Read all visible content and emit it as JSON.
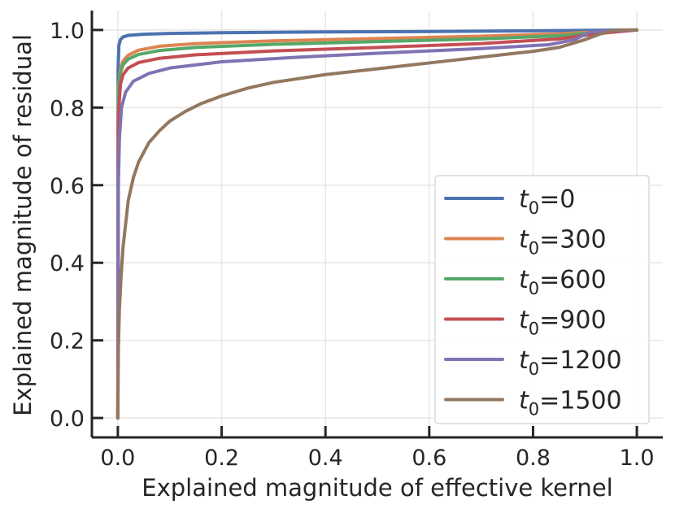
{
  "chart_data": {
    "type": "line",
    "title": "",
    "xlabel": "Explained magnitude of effective kernel",
    "ylabel": "Explained magnitude of residual",
    "xlim": [
      -0.05,
      1.05
    ],
    "ylim": [
      -0.05,
      1.05
    ],
    "xticks": [
      0.0,
      0.2,
      0.4,
      0.6,
      0.8,
      1.0
    ],
    "xtick_labels": [
      "0.0",
      "0.2",
      "0.4",
      "0.6",
      "0.8",
      "1.0"
    ],
    "yticks": [
      0.0,
      0.2,
      0.4,
      0.6,
      0.8,
      1.0
    ],
    "ytick_labels": [
      "0.0",
      "0.2",
      "0.4",
      "0.6",
      "0.8",
      "1.0"
    ],
    "grid": true,
    "legend_position": "lower right",
    "series": [
      {
        "name": "t0=0",
        "label_base": "t",
        "label_sub": "0",
        "label_value": "=0",
        "color": "#4c72b0",
        "points": [
          [
            0,
            0
          ],
          [
            0.0005,
            0.9
          ],
          [
            0.002,
            0.96
          ],
          [
            0.005,
            0.975
          ],
          [
            0.01,
            0.982
          ],
          [
            0.02,
            0.986
          ],
          [
            0.05,
            0.989
          ],
          [
            0.1,
            0.991
          ],
          [
            0.2,
            0.993
          ],
          [
            0.4,
            0.995
          ],
          [
            0.6,
            0.996
          ],
          [
            0.8,
            0.998
          ],
          [
            0.9,
            0.999
          ],
          [
            1.0,
            1.0
          ]
        ]
      },
      {
        "name": "t0=300",
        "label_base": "t",
        "label_sub": "0",
        "label_value": "=300",
        "color": "#dd8452",
        "points": [
          [
            0,
            0
          ],
          [
            0.001,
            0.85
          ],
          [
            0.005,
            0.9
          ],
          [
            0.01,
            0.92
          ],
          [
            0.02,
            0.935
          ],
          [
            0.04,
            0.948
          ],
          [
            0.08,
            0.958
          ],
          [
            0.15,
            0.965
          ],
          [
            0.3,
            0.972
          ],
          [
            0.5,
            0.978
          ],
          [
            0.7,
            0.984
          ],
          [
            0.85,
            0.99
          ],
          [
            0.93,
            0.996
          ],
          [
            1.0,
            1.0
          ]
        ]
      },
      {
        "name": "t0=600",
        "label_base": "t",
        "label_sub": "0",
        "label_value": "=600",
        "color": "#55a868",
        "points": [
          [
            0,
            0
          ],
          [
            0.001,
            0.84
          ],
          [
            0.005,
            0.89
          ],
          [
            0.01,
            0.91
          ],
          [
            0.02,
            0.925
          ],
          [
            0.04,
            0.937
          ],
          [
            0.08,
            0.947
          ],
          [
            0.15,
            0.955
          ],
          [
            0.3,
            0.963
          ],
          [
            0.5,
            0.97
          ],
          [
            0.7,
            0.977
          ],
          [
            0.85,
            0.985
          ],
          [
            0.93,
            0.994
          ],
          [
            1.0,
            1.0
          ]
        ]
      },
      {
        "name": "t0=900",
        "label_base": "t",
        "label_sub": "0",
        "label_value": "=900",
        "color": "#c44e52",
        "points": [
          [
            0,
            0
          ],
          [
            0.001,
            0.78
          ],
          [
            0.005,
            0.86
          ],
          [
            0.01,
            0.885
          ],
          [
            0.02,
            0.902
          ],
          [
            0.04,
            0.916
          ],
          [
            0.08,
            0.927
          ],
          [
            0.15,
            0.936
          ],
          [
            0.3,
            0.946
          ],
          [
            0.5,
            0.955
          ],
          [
            0.7,
            0.965
          ],
          [
            0.85,
            0.977
          ],
          [
            0.92,
            0.99
          ],
          [
            1.0,
            1.0
          ]
        ]
      },
      {
        "name": "t0=1200",
        "label_base": "t",
        "label_sub": "0",
        "label_value": "=1200",
        "color": "#8172b3",
        "points": [
          [
            0,
            0
          ],
          [
            0.001,
            0.6
          ],
          [
            0.003,
            0.72
          ],
          [
            0.007,
            0.8
          ],
          [
            0.015,
            0.84
          ],
          [
            0.03,
            0.868
          ],
          [
            0.06,
            0.888
          ],
          [
            0.1,
            0.902
          ],
          [
            0.2,
            0.918
          ],
          [
            0.35,
            0.93
          ],
          [
            0.5,
            0.94
          ],
          [
            0.7,
            0.952
          ],
          [
            0.83,
            0.962
          ],
          [
            0.88,
            0.975
          ],
          [
            0.91,
            0.995
          ],
          [
            1.0,
            1.0
          ]
        ]
      },
      {
        "name": "t0=1500",
        "label_base": "t",
        "label_sub": "0",
        "label_value": "=1500",
        "color": "#937860",
        "points": [
          [
            0,
            0
          ],
          [
            0.001,
            0.18
          ],
          [
            0.003,
            0.28
          ],
          [
            0.006,
            0.36
          ],
          [
            0.01,
            0.44
          ],
          [
            0.015,
            0.5
          ],
          [
            0.02,
            0.56
          ],
          [
            0.03,
            0.62
          ],
          [
            0.04,
            0.66
          ],
          [
            0.06,
            0.71
          ],
          [
            0.08,
            0.74
          ],
          [
            0.1,
            0.765
          ],
          [
            0.13,
            0.79
          ],
          [
            0.16,
            0.81
          ],
          [
            0.2,
            0.83
          ],
          [
            0.25,
            0.85
          ],
          [
            0.3,
            0.865
          ],
          [
            0.4,
            0.885
          ],
          [
            0.5,
            0.9
          ],
          [
            0.6,
            0.915
          ],
          [
            0.7,
            0.93
          ],
          [
            0.8,
            0.945
          ],
          [
            0.85,
            0.955
          ],
          [
            0.9,
            0.975
          ],
          [
            0.93,
            0.99
          ],
          [
            0.96,
            1.0
          ],
          [
            1.0,
            1.0
          ]
        ]
      }
    ]
  }
}
